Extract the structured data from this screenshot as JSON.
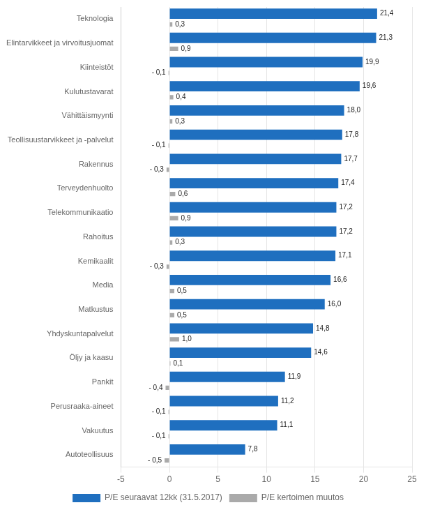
{
  "chart_data": {
    "type": "bar",
    "orientation": "horizontal",
    "categories": [
      "Teknologia",
      "Elintarvikkeet ja virvoitusjuomat",
      "Kiinteistöt",
      "Kulutustavarat",
      "Vähittäismyynti",
      "Teollisuustarvikkeet ja -palvelut",
      "Rakennus",
      "Terveydenhuolto",
      "Telekommunikaatio",
      "Rahoitus",
      "Kemikaalit",
      "Media",
      "Matkustus",
      "Yhdyskuntapalvelut",
      "Öljy ja kaasu",
      "Pankit",
      "Perusraaka-aineet",
      "Vakuutus",
      "Autoteollisuus"
    ],
    "series": [
      {
        "name": "P/E seuraavat 12kk (31.5.2017)",
        "color": "#1F6FBF",
        "values": [
          21.4,
          21.3,
          19.9,
          19.6,
          18.0,
          17.8,
          17.7,
          17.4,
          17.2,
          17.2,
          17.1,
          16.6,
          16.0,
          14.8,
          14.6,
          11.9,
          11.2,
          11.1,
          7.8
        ],
        "value_labels": [
          "21,4",
          "21,3",
          "19,9",
          "19,6",
          "18,0",
          "17,8",
          "17,7",
          "17,4",
          "17,2",
          "17,2",
          "17,1",
          "16,6",
          "16,0",
          "14,8",
          "14,6",
          "11,9",
          "11,2",
          "11,1",
          "7,8"
        ]
      },
      {
        "name": "P/E kertoimen muutos",
        "color": "#AAAAAA",
        "values": [
          0.3,
          0.9,
          -0.1,
          0.4,
          0.3,
          -0.1,
          -0.3,
          0.6,
          0.9,
          0.3,
          -0.3,
          0.5,
          0.5,
          1.0,
          0.1,
          -0.4,
          -0.1,
          -0.1,
          -0.5
        ],
        "value_labels": [
          "0,3",
          "0,9",
          "- 0,1",
          "0,4",
          "0,3",
          "- 0,1",
          "- 0,3",
          "0,6",
          "0,9",
          "0,3",
          "- 0,3",
          "0,5",
          "0,5",
          "1,0",
          "0,1",
          "- 0,4",
          "- 0,1",
          "- 0,1",
          "- 0,5"
        ]
      }
    ],
    "xlim": [
      -5,
      25
    ],
    "xticks": [
      -5,
      0,
      5,
      10,
      15,
      20,
      25
    ],
    "grid": "x",
    "legend": "bottom",
    "data_labels": true
  }
}
